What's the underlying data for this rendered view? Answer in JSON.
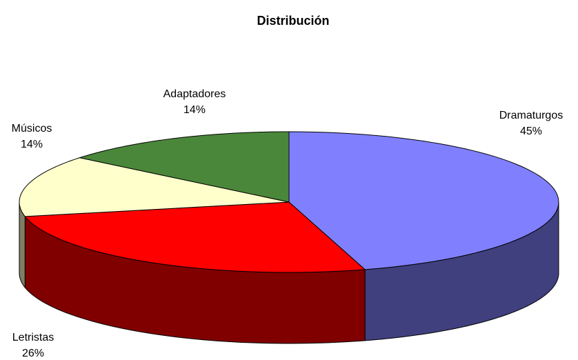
{
  "chart_data": {
    "type": "pie",
    "title": "Distribución",
    "categories": [
      "Dramaturgos",
      "Letristas",
      "Músicos",
      "Adaptadores"
    ],
    "values": [
      45,
      26,
      14,
      14
    ],
    "value_labels": [
      "45%",
      "26%",
      "14%",
      "14%"
    ],
    "colors": [
      "#8080ff",
      "#ff0000",
      "#ffffcc",
      "#4a873a"
    ],
    "side_colors": [
      "#40407f",
      "#800000",
      "#7f7f66",
      "#25441d"
    ]
  }
}
